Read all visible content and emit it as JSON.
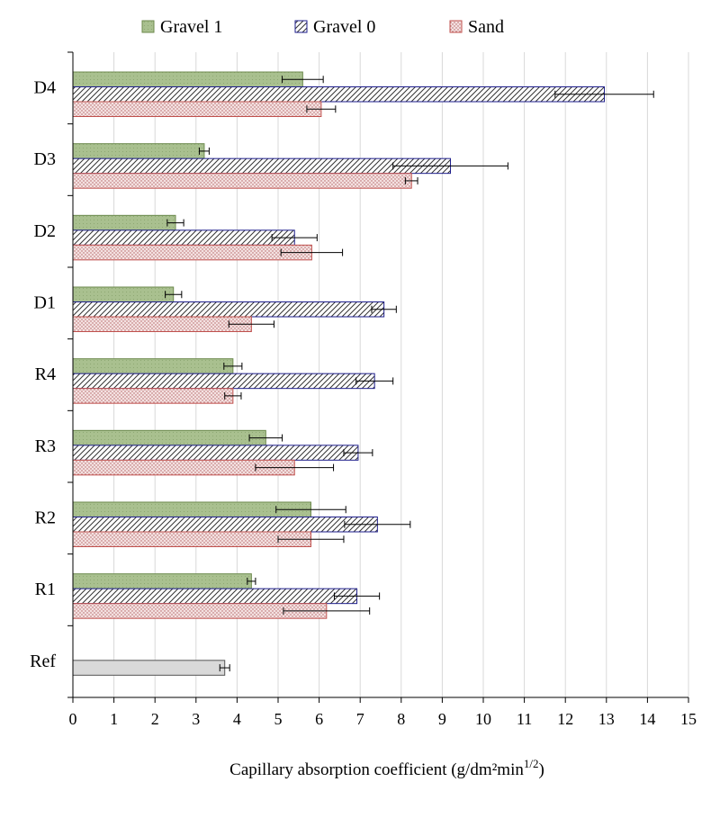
{
  "chart_data": {
    "type": "bar",
    "orientation": "horizontal",
    "categories": [
      "D4",
      "D3",
      "D2",
      "D1",
      "R4",
      "R3",
      "R2",
      "R1",
      "Ref"
    ],
    "series": [
      {
        "name": "Gravel 1",
        "pattern": "solid-green",
        "color": "#a9c08f",
        "values": [
          5.6,
          3.2,
          2.5,
          2.45,
          3.9,
          4.7,
          5.8,
          4.35,
          null
        ],
        "errors": [
          0.5,
          0.12,
          0.2,
          0.2,
          0.22,
          0.4,
          0.85,
          0.1,
          null
        ]
      },
      {
        "name": "Gravel 0",
        "pattern": "diagonal-hatch",
        "color": "#1e1e8c",
        "values": [
          12.95,
          9.2,
          5.4,
          7.58,
          7.35,
          6.95,
          7.42,
          6.92,
          null
        ],
        "errors": [
          1.2,
          1.4,
          0.55,
          0.3,
          0.45,
          0.35,
          0.8,
          0.55,
          null
        ]
      },
      {
        "name": "Sand",
        "pattern": "dotted",
        "color": "#c0504d",
        "values": [
          6.05,
          8.25,
          5.82,
          4.35,
          3.9,
          5.4,
          5.8,
          6.18,
          null
        ],
        "errors": [
          0.35,
          0.15,
          0.75,
          0.55,
          0.2,
          0.95,
          0.8,
          1.05,
          null
        ]
      }
    ],
    "reference": {
      "category": "Ref",
      "value": 3.7,
      "error": 0.12,
      "color": "#d9d9d9"
    },
    "xlabel_main": "Capillary absorption coefficient  (g/dm²min",
    "xlabel_sup": "1/2",
    "xlabel_end": ")",
    "xlim": [
      0,
      15
    ],
    "xticks": [
      0,
      1,
      2,
      3,
      4,
      5,
      6,
      7,
      8,
      9,
      10,
      11,
      12,
      13,
      14,
      15
    ],
    "grid": "vertical",
    "legend_position": "top"
  }
}
